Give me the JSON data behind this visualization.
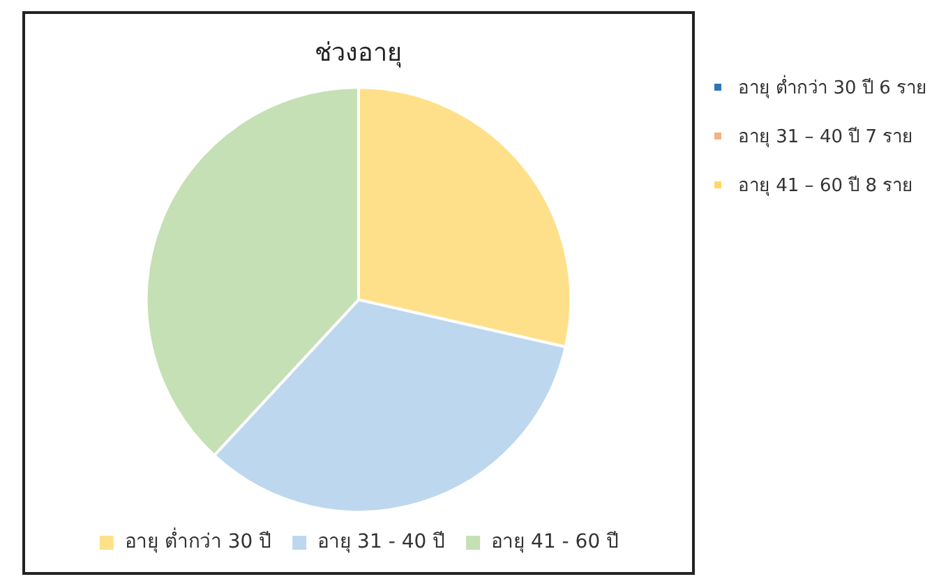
{
  "chart_data": {
    "type": "pie",
    "title": "ช่วงอายุ",
    "categories": [
      "อายุ ต่ำกว่า 30 ปี",
      "อายุ 31 - 40 ปี",
      "อายุ 41 - 60 ปี"
    ],
    "values": [
      28.57,
      33.33,
      38.1
    ],
    "colors": [
      "#ffe08a",
      "#bdd7ee",
      "#c5e0b4"
    ],
    "legend": "bottom",
    "annotations": [
      "อายุ ต่ำกว่า 30 ปี  6 ราย",
      "อายุ 31 – 40 ปี 7  ราย",
      "อายุ 41 – 60 ปี 8 ราย"
    ]
  }
}
